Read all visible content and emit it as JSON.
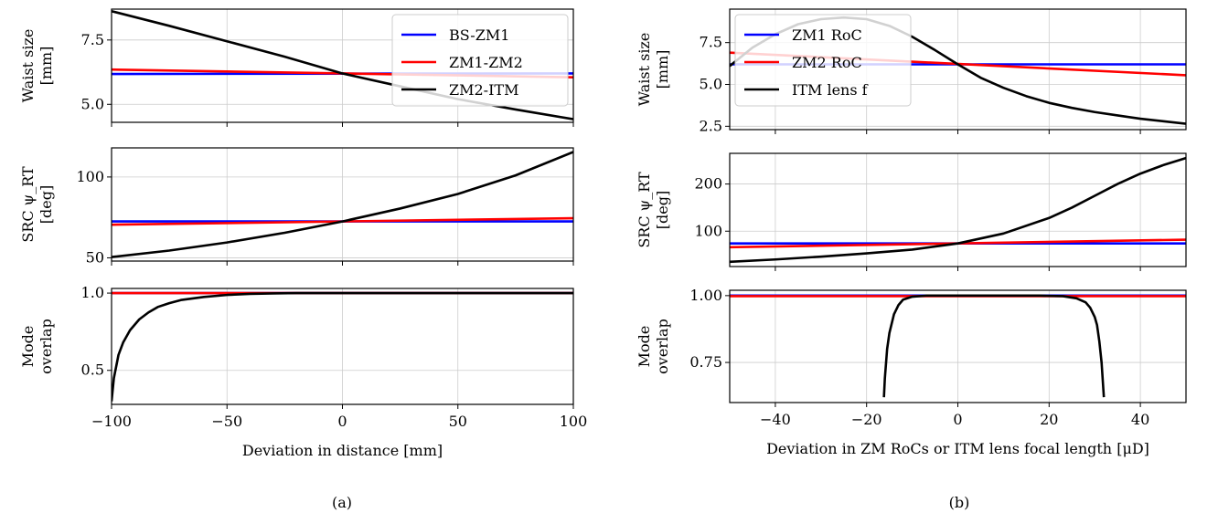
{
  "chart_data": [
    {
      "type": "line",
      "id": "a-waist",
      "ylabel_lines": [
        "Waist size",
        "[mm]"
      ],
      "xlim": [
        -100,
        100
      ],
      "ylim": [
        4.3,
        8.7
      ],
      "xticks": [
        -100,
        -50,
        0,
        50,
        100
      ],
      "yticks": [
        5.0,
        7.5
      ],
      "ytick_labels": [
        "5.0",
        "7.5"
      ],
      "grid": true,
      "legend": "top-right",
      "series": [
        {
          "name": "BS-ZM1",
          "color": "#0000ff",
          "x": [
            -100,
            100
          ],
          "y": [
            6.18,
            6.2
          ]
        },
        {
          "name": "ZM1-ZM2",
          "color": "#ff0000",
          "x": [
            -100,
            100
          ],
          "y": [
            6.35,
            6.05
          ]
        },
        {
          "name": "ZM2-ITM",
          "color": "#000000",
          "x": [
            -100,
            -75,
            -50,
            -25,
            0,
            25,
            50,
            75,
            100
          ],
          "y": [
            8.62,
            8.05,
            7.45,
            6.85,
            6.2,
            5.7,
            5.2,
            4.8,
            4.42
          ]
        }
      ]
    },
    {
      "type": "line",
      "id": "a-src",
      "ylabel_lines": [
        "SRC ψ_RT",
        "[deg]"
      ],
      "xlim": [
        -100,
        100
      ],
      "ylim": [
        48,
        118
      ],
      "xticks": [
        -100,
        -50,
        0,
        50,
        100
      ],
      "yticks": [
        50,
        100
      ],
      "ytick_labels": [
        "50",
        "100"
      ],
      "grid": true,
      "series": [
        {
          "name": "BS-ZM1",
          "color": "#0000ff",
          "x": [
            -100,
            100
          ],
          "y": [
            72.5,
            72.5
          ]
        },
        {
          "name": "ZM1-ZM2",
          "color": "#ff0000",
          "x": [
            -100,
            100
          ],
          "y": [
            70.5,
            74.5
          ]
        },
        {
          "name": "ZM2-ITM",
          "color": "#000000",
          "x": [
            -100,
            -75,
            -50,
            -25,
            0,
            25,
            50,
            75,
            100
          ],
          "y": [
            50.5,
            54.5,
            59.5,
            65.5,
            72.5,
            80.5,
            89.5,
            101,
            115.5
          ]
        }
      ]
    },
    {
      "type": "line",
      "id": "a-mode",
      "ylabel_lines": [
        "Mode",
        "overlap"
      ],
      "xlim": [
        -100,
        100
      ],
      "ylim": [
        0.28,
        1.03
      ],
      "xticks": [
        -100,
        -50,
        0,
        50,
        100
      ],
      "xtick_labels": [
        "−100",
        "−50",
        "0",
        "50",
        "100"
      ],
      "yticks": [
        0.5,
        1.0
      ],
      "ytick_labels": [
        "0.5",
        "1.0"
      ],
      "xlabel": "Deviation in distance [mm]",
      "grid": true,
      "series": [
        {
          "name": "BS-ZM1",
          "color": "#0000ff",
          "x": [
            -100,
            100
          ],
          "y": [
            1.0,
            1.0
          ]
        },
        {
          "name": "ZM1-ZM2",
          "color": "#ff0000",
          "x": [
            -100,
            100
          ],
          "y": [
            1.0,
            1.0
          ]
        },
        {
          "name": "ZM2-ITM",
          "color": "#000000",
          "x": [
            -100,
            -99,
            -97,
            -95,
            -92,
            -88,
            -84,
            -80,
            -75,
            -70,
            -60,
            -50,
            -40,
            -30,
            -20,
            0,
            100
          ],
          "y": [
            0.3,
            0.45,
            0.6,
            0.68,
            0.76,
            0.83,
            0.875,
            0.91,
            0.935,
            0.955,
            0.975,
            0.988,
            0.995,
            0.998,
            1.0,
            1.0,
            1.0
          ]
        }
      ]
    },
    {
      "type": "line",
      "id": "b-waist",
      "ylabel_lines": [
        "Waist size",
        "[mm]"
      ],
      "xlim": [
        -50,
        50
      ],
      "ylim": [
        2.3,
        9.5
      ],
      "xticks": [
        -40,
        -20,
        0,
        20,
        40
      ],
      "yticks": [
        2.5,
        5.0,
        7.5
      ],
      "ytick_labels": [
        "2.5",
        "5.0",
        "7.5"
      ],
      "grid": true,
      "legend": "top-left",
      "series": [
        {
          "name": "ZM1 RoC",
          "color": "#0000ff",
          "x": [
            -50,
            50
          ],
          "y": [
            6.2,
            6.2
          ]
        },
        {
          "name": "ZM2 RoC",
          "color": "#ff0000",
          "x": [
            -50,
            50
          ],
          "y": [
            6.9,
            5.55
          ]
        },
        {
          "name": "ITM lens f",
          "color": "#000000",
          "x": [
            -50,
            -45,
            -40,
            -35,
            -30,
            -25,
            -20,
            -15,
            -10,
            -5,
            0,
            5,
            10,
            15,
            20,
            25,
            30,
            35,
            40,
            45,
            50
          ],
          "y": [
            6.1,
            7.2,
            8.0,
            8.6,
            8.9,
            9.0,
            8.9,
            8.5,
            7.85,
            7.05,
            6.2,
            5.4,
            4.8,
            4.3,
            3.9,
            3.6,
            3.35,
            3.15,
            2.95,
            2.8,
            2.65
          ]
        }
      ]
    },
    {
      "type": "line",
      "id": "b-src",
      "ylabel_lines": [
        "SRC ψ_RT",
        "[deg]"
      ],
      "xlim": [
        -50,
        50
      ],
      "ylim": [
        25,
        265
      ],
      "xticks": [
        -40,
        -20,
        0,
        20,
        40
      ],
      "yticks": [
        100,
        200
      ],
      "ytick_labels": [
        "100",
        "200"
      ],
      "grid": true,
      "series": [
        {
          "name": "ZM1 RoC",
          "color": "#0000ff",
          "x": [
            -50,
            50
          ],
          "y": [
            74,
            74
          ]
        },
        {
          "name": "ZM2 RoC",
          "color": "#ff0000",
          "x": [
            -50,
            50
          ],
          "y": [
            66,
            82
          ]
        },
        {
          "name": "ITM lens f",
          "color": "#000000",
          "x": [
            -50,
            -40,
            -30,
            -20,
            -10,
            0,
            10,
            20,
            25,
            30,
            35,
            40,
            45,
            50
          ],
          "y": [
            35,
            40,
            46,
            53,
            61,
            74,
            95,
            128,
            150,
            175,
            200,
            222,
            240,
            255
          ]
        }
      ]
    },
    {
      "type": "line",
      "id": "b-mode",
      "ylabel_lines": [
        "Mode",
        "overlap"
      ],
      "xlim": [
        -50,
        50
      ],
      "ylim": [
        0.6,
        1.02
      ],
      "xticks": [
        -40,
        -20,
        0,
        20,
        40
      ],
      "xtick_labels": [
        "−40",
        "−20",
        "0",
        "20",
        "40"
      ],
      "yticks": [
        0.75,
        1.0
      ],
      "ytick_labels": [
        "0.75",
        "1.00"
      ],
      "xlabel": "Deviation in ZM RoCs or ITM lens focal length [μD]",
      "grid": true,
      "series": [
        {
          "name": "ZM1 RoC",
          "color": "#0000ff",
          "x": [
            -50,
            50
          ],
          "y": [
            1.0,
            1.0
          ]
        },
        {
          "name": "ZM2 RoC",
          "color": "#ff0000",
          "x": [
            -50,
            50
          ],
          "y": [
            0.998,
            0.998
          ]
        },
        {
          "name": "ITM lens f",
          "color": "#000000",
          "x": [
            -16.2,
            -16,
            -15.5,
            -15,
            -14,
            -13,
            -12,
            -10,
            -7,
            0,
            10,
            18,
            23,
            26,
            28,
            29,
            30,
            30.5,
            31,
            31.5,
            32
          ],
          "y": [
            0.62,
            0.69,
            0.8,
            0.86,
            0.93,
            0.965,
            0.985,
            0.996,
            1.0,
            1.0,
            1.0,
            1.0,
            0.998,
            0.99,
            0.975,
            0.955,
            0.92,
            0.89,
            0.83,
            0.75,
            0.62
          ]
        }
      ]
    }
  ],
  "captions": {
    "a": "(a)",
    "b": "(b)"
  }
}
